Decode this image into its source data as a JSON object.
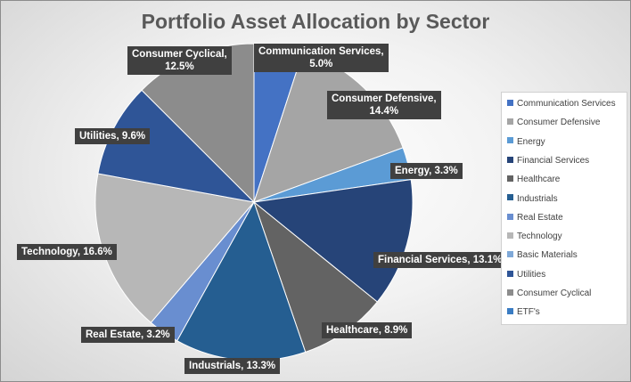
{
  "chart_data": {
    "type": "pie",
    "title": "Portfolio Asset Allocation by Sector",
    "slices": [
      {
        "label": "Communication Services",
        "value": 5.0,
        "display": "5.0%",
        "color": "#4472c4"
      },
      {
        "label": "Consumer Defensive",
        "value": 14.4,
        "display": "14.4%",
        "color": "#a5a5a5"
      },
      {
        "label": "Energy",
        "value": 3.3,
        "display": "3.3%",
        "color": "#5b9bd5"
      },
      {
        "label": "Financial Services",
        "value": 13.1,
        "display": "13.1%",
        "color": "#264478"
      },
      {
        "label": "Healthcare",
        "value": 8.9,
        "display": "8.9%",
        "color": "#636363"
      },
      {
        "label": "Industrials",
        "value": 13.3,
        "display": "13.3%",
        "color": "#255e91"
      },
      {
        "label": "Real Estate",
        "value": 3.2,
        "display": "3.2%",
        "color": "#698ed0"
      },
      {
        "label": "Technology",
        "value": 16.6,
        "display": "16.6%",
        "color": "#b7b7b7"
      },
      {
        "label": "Utilities",
        "value": 9.6,
        "display": "9.6%",
        "color": "#2f5597"
      },
      {
        "label": "Consumer Cyclical",
        "value": 12.5,
        "display": "12.5%",
        "color": "#8c8c8c"
      }
    ],
    "legend": {
      "position": "right",
      "entries": [
        {
          "label": "Communication Services",
          "color": "#4472c4"
        },
        {
          "label": "Consumer Defensive",
          "color": "#a5a5a5"
        },
        {
          "label": "Energy",
          "color": "#5b9bd5"
        },
        {
          "label": "Financial Services",
          "color": "#264478"
        },
        {
          "label": "Healthcare",
          "color": "#636363"
        },
        {
          "label": "Industrials",
          "color": "#255e91"
        },
        {
          "label": "Real Estate",
          "color": "#698ed0"
        },
        {
          "label": "Technology",
          "color": "#b7b7b7"
        },
        {
          "label": "Basic Materials",
          "color": "#7fa9d8"
        },
        {
          "label": "Utilities",
          "color": "#2f5597"
        },
        {
          "label": "Consumer Cyclical",
          "color": "#8c8c8c"
        },
        {
          "label": "ETF's",
          "color": "#3a7cc3"
        }
      ]
    }
  }
}
